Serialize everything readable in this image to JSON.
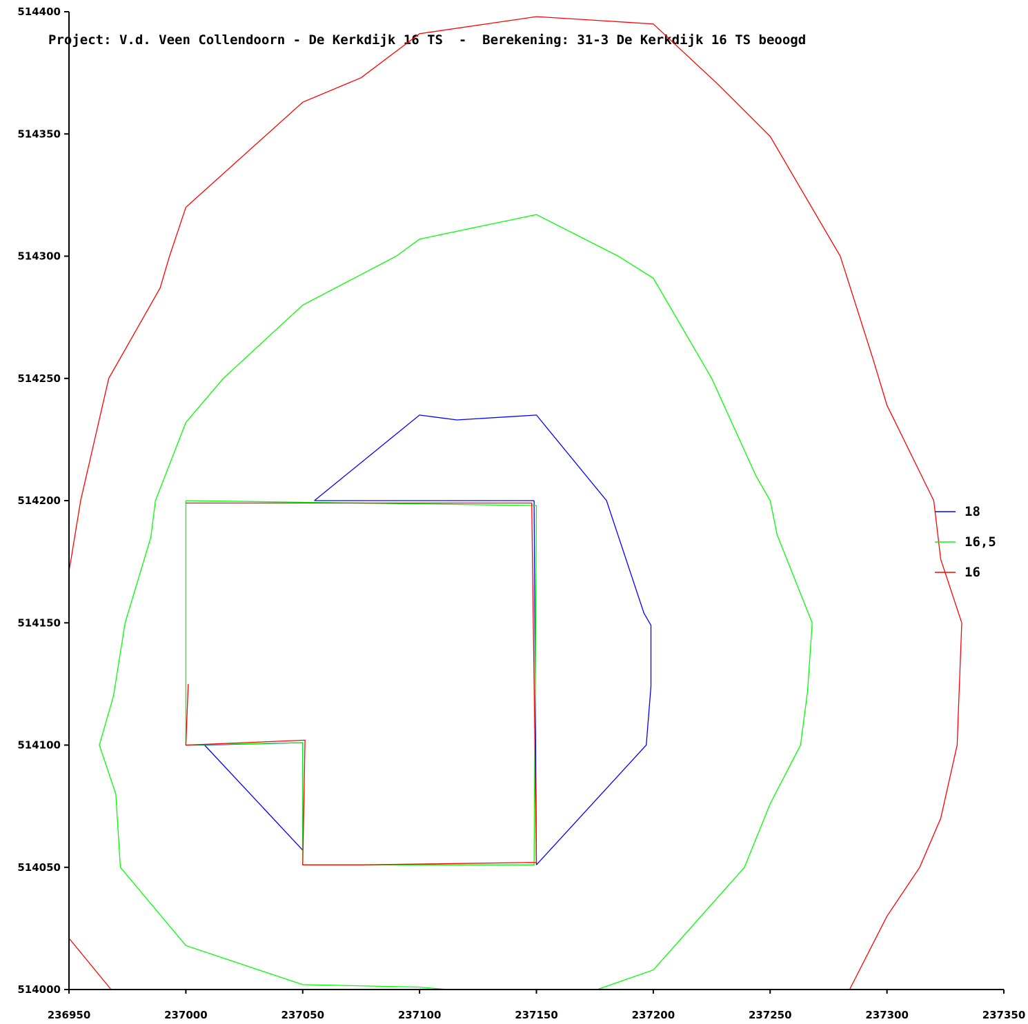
{
  "chart_data": {
    "type": "line",
    "title": "Project: V.d. Veen Collendoorn - De Kerkdijk 16 TS  -  Berekening: 31-3 De Kerkdijk 16 TS beoogd",
    "xlabel": "",
    "ylabel": "",
    "xlim": [
      236950,
      237350
    ],
    "ylim": [
      514000,
      514400
    ],
    "xticks": [
      "236950",
      "237000",
      "237050",
      "237100",
      "237150",
      "237200",
      "237250",
      "237300",
      "237350"
    ],
    "yticks": [
      "514000",
      "514050",
      "514100",
      "514150",
      "514200",
      "514250",
      "514300",
      "514350",
      "514400"
    ],
    "grid": false,
    "legend_position": "right",
    "series": [
      {
        "name": "18",
        "color": "#0000ff",
        "segments": [
          [
            [
              237055,
              514200
            ],
            [
              237100,
              514235
            ],
            [
              237116,
              514233
            ],
            [
              237150,
              514235
            ],
            [
              237180,
              514200
            ],
            [
              237196,
              514154
            ],
            [
              237199,
              514149
            ],
            [
              237199,
              514124
            ],
            [
              237197,
              514100
            ],
            [
              237150,
              514051
            ]
          ],
          [
            [
              237150,
              514051
            ],
            [
              237149,
              514200
            ]
          ],
          [
            [
              237149,
              514200
            ],
            [
              237055,
              514200
            ]
          ],
          [
            [
              237008,
              514100
            ],
            [
              237050,
              514101
            ],
            [
              237050,
              514057
            ]
          ],
          [
            [
              237050,
              514057
            ],
            [
              237008,
              514100
            ]
          ],
          [
            [
              237000,
              514100
            ],
            [
              237008,
              514100
            ]
          ]
        ]
      },
      {
        "name": "16,5",
        "color": "#00ff00",
        "segments": [
          [
            [
              237112,
              514000
            ],
            [
              237100,
              514001
            ],
            [
              237050,
              514002
            ],
            [
              237000,
              514018
            ],
            [
              236972,
              514050
            ],
            [
              236970,
              514080
            ],
            [
              236963,
              514100
            ],
            [
              236969,
              514120
            ],
            [
              236974,
              514150
            ],
            [
              236985,
              514185
            ],
            [
              236987,
              514200
            ],
            [
              237000,
              514232
            ],
            [
              237016,
              514250
            ],
            [
              237050,
              514280
            ],
            [
              237090,
              514300
            ],
            [
              237100,
              514307
            ],
            [
              237150,
              514317
            ],
            [
              237185,
              514300
            ],
            [
              237200,
              514291
            ],
            [
              237225,
              514250
            ],
            [
              237244,
              514210
            ],
            [
              237250,
              514200
            ],
            [
              237253,
              514186
            ],
            [
              237268,
              514150
            ],
            [
              237266,
              514122
            ],
            [
              237263,
              514100
            ],
            [
              237250,
              514076
            ],
            [
              237239,
              514050
            ],
            [
              237200,
              514008
            ],
            [
              237176,
              514000
            ]
          ],
          [
            [
              237000,
              514200
            ],
            [
              237150,
              514198
            ],
            [
              237149,
              514051
            ],
            [
              237050,
              514051
            ],
            [
              237050,
              514101
            ],
            [
              237000,
              514100
            ],
            [
              237000,
              514200
            ]
          ]
        ]
      },
      {
        "name": "16",
        "color": "#ff0000",
        "segments": [
          [
            [
              236950,
              514021
            ],
            [
              236968,
              514000
            ]
          ],
          [
            [
              236950,
              514171
            ],
            [
              236955,
              514200
            ],
            [
              236967,
              514250
            ],
            [
              236989,
              514287
            ],
            [
              236993,
              514300
            ],
            [
              237000,
              514320
            ],
            [
              237050,
              514363
            ],
            [
              237075,
              514373
            ],
            [
              237100,
              514391
            ],
            [
              237150,
              514398
            ],
            [
              237200,
              514395
            ],
            [
              237228,
              514370
            ],
            [
              237250,
              514349
            ],
            [
              237280,
              514300
            ],
            [
              237294,
              514258
            ],
            [
              237300,
              514239
            ],
            [
              237320,
              514200
            ],
            [
              237323,
              514176
            ],
            [
              237332,
              514150
            ],
            [
              237331,
              514125
            ],
            [
              237330,
              514100
            ],
            [
              237323,
              514070
            ],
            [
              237314,
              514050
            ],
            [
              237300,
              514030
            ],
            [
              237284,
              514000
            ]
          ],
          [
            [
              237000,
              514199
            ],
            [
              237148,
              514199
            ],
            [
              237150,
              514052
            ],
            [
              237076,
              514051
            ],
            [
              237050,
              514051
            ],
            [
              237051,
              514102
            ],
            [
              237000,
              514100
            ],
            [
              237001,
              514125
            ]
          ]
        ]
      }
    ]
  }
}
